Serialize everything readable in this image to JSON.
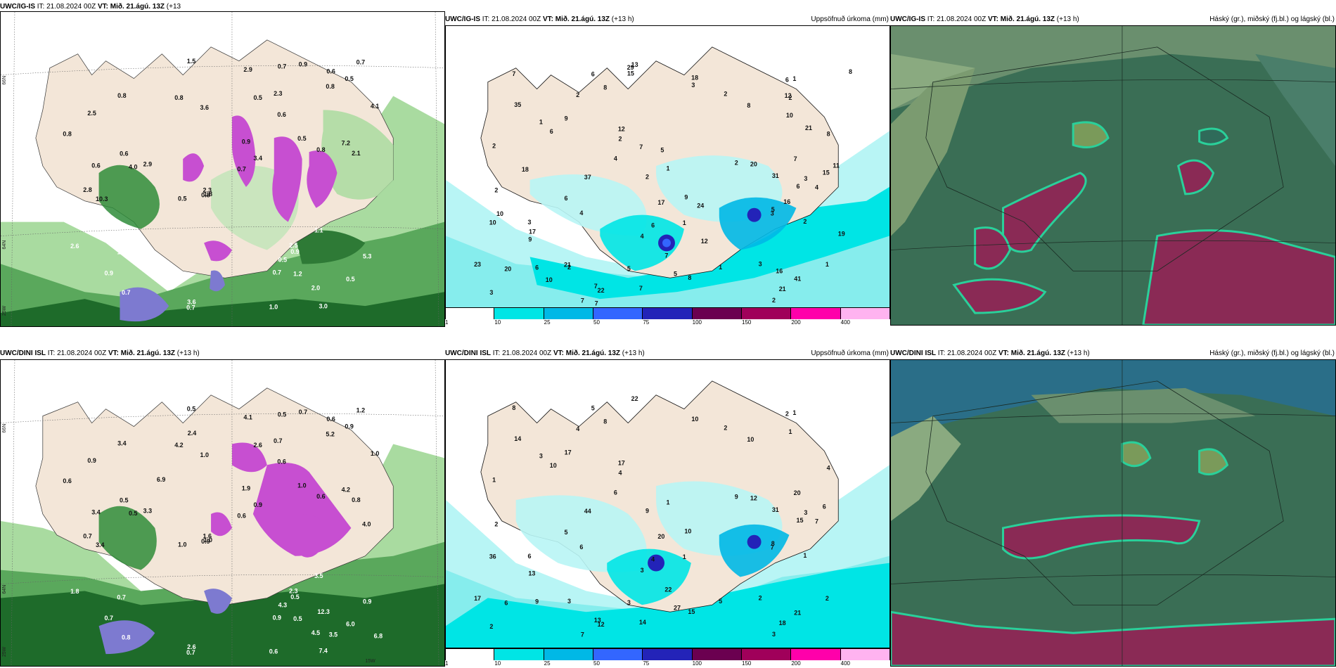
{
  "panels": {
    "top_left": {
      "model": "UWC/IG-IS",
      "it_label": "IT:",
      "it": "21.08.2024 00Z",
      "vt_label": "VT:",
      "vt": "Mið. 21.ágú. 13Z",
      "lead": "(+13",
      "title_right": ""
    },
    "top_mid": {
      "model": "UWC/IG-IS",
      "it_label": "IT:",
      "it": "21.08.2024 00Z",
      "vt_label": "VT:",
      "vt": "Mið. 21.ágú. 13Z",
      "lead": "(+13 h)",
      "title_right": "Uppsöfnuð úrkoma (mm)"
    },
    "top_right": {
      "model": "UWC/IG-IS",
      "it_label": "IT:",
      "it": "21.08.2024 00Z",
      "vt_label": "VT:",
      "vt": "Mið. 21.ágú. 13Z",
      "lead": "(+13 h)",
      "title_right": "Háský (gr.), miðský (fj.bl.) og lágský (bl.)"
    },
    "bot_left": {
      "model": "UWC/DINI ISL",
      "it_label": "IT:",
      "it": "21.08.2024 00Z",
      "vt_label": "VT:",
      "vt": "Mið. 21.ágú. 13Z",
      "lead": "(+13 h)",
      "title_right": ""
    },
    "bot_mid": {
      "model": "UWC/DINI ISL",
      "it_label": "IT:",
      "it": "21.08.2024 00Z",
      "vt_label": "VT:",
      "vt": "Mið. 21.ágú. 13Z",
      "lead": "(+13 h)",
      "title_right": "Uppsöfnuð úrkoma (mm)"
    },
    "bot_right": {
      "model": "UWC/DINI ISL",
      "it_label": "IT:",
      "it": "21.08.2024 00Z",
      "vt_label": "VT:",
      "vt": "Mið. 21.ágú. 13Z",
      "lead": "(+13 h)",
      "title_right": "Háský (gr.), miðský (fj.bl.) og lágský (bl.)"
    }
  },
  "axis_labels": {
    "lat66": "66N",
    "lat64": "64N",
    "lon25": "25W",
    "lon15": "15W",
    "h_suffix": "h)"
  },
  "precip_colorbar": {
    "ticks": [
      "1",
      "10",
      "25",
      "50",
      "75",
      "100",
      "150",
      "200",
      "400"
    ],
    "colors": [
      "#ffffff",
      "#00e5e5",
      "#00b8e6",
      "#3366ff",
      "#2323b8",
      "#6b0050",
      "#a0005a",
      "#ff00aa",
      "#ffb3f0"
    ]
  },
  "land_color": "#f3e6d8",
  "labels": {
    "top_left": [
      "0.6",
      "0.6",
      "0.7",
      "0.6",
      "0.5",
      "0.7",
      "0.5",
      "0.8",
      "0.7",
      "0.9",
      "1.2",
      "0.8",
      "0.9",
      "0.5",
      "0.7",
      "0.8",
      "0.7",
      "1.3",
      "0.9",
      "2.5",
      "1.5",
      "1.8",
      "5.3",
      "0.5",
      "1.0",
      "4.0",
      "2.8",
      "3.4",
      "2.3",
      "2.9",
      "2.3",
      "2.1",
      "3.6",
      "10.3",
      "7.2",
      "4.1",
      "3.6",
      "2.5",
      "2.6",
      "1.1",
      "2.0",
      "0.8",
      "2.9",
      "0.8",
      "0.5",
      "0.6",
      "0.5",
      "3.0",
      "0.8",
      "0.9",
      "0.7"
    ],
    "top_mid": [
      "2",
      "2",
      "1",
      "1",
      "1",
      "2",
      "3",
      "1",
      "2",
      "2",
      "2",
      "1",
      "1",
      "2",
      "2",
      "3",
      "4",
      "5",
      "6",
      "3",
      "4",
      "2",
      "3",
      "5",
      "7",
      "4",
      "6",
      "2",
      "3",
      "7",
      "4",
      "6",
      "2",
      "7",
      "9",
      "8",
      "6",
      "15",
      "3",
      "8",
      "9",
      "13",
      "7",
      "5",
      "7",
      "6",
      "9",
      "8",
      "10",
      "31",
      "37",
      "17",
      "20",
      "23",
      "21",
      "7",
      "6",
      "6",
      "8",
      "20",
      "12",
      "41",
      "35",
      "22",
      "29",
      "21",
      "5",
      "8",
      "12",
      "10",
      "21",
      "18",
      "16",
      "15",
      "18",
      "24",
      "19",
      "7",
      "11",
      "16",
      "10",
      "17",
      "7",
      "10",
      "12"
    ],
    "top_right": [],
    "bot_left": [
      "0.6",
      "0.5",
      "0.7",
      "0.6",
      "1.0",
      "0.9",
      "1.0",
      "0.6",
      "0.8",
      "0.7",
      "0.5",
      "0.9",
      "0.7",
      "0.9",
      "0.5",
      "0.6",
      "0.6",
      "0.7",
      "0.5",
      "0.9",
      "0.5",
      "1.0",
      "0.9",
      "2.6",
      "0.6",
      "0.5",
      "0.7",
      "0.9",
      "1.6",
      "3.3",
      "0.7",
      "0.8",
      "1.0",
      "3.4",
      "4.2",
      "1.0",
      "2.6",
      "2.3",
      "1.8",
      "3.5",
      "4.5",
      "3.4",
      "4.1",
      "4.2",
      "4.3",
      "3.4",
      "6.0",
      "7.4",
      "5.2",
      "1.9",
      "1.2",
      "4.0",
      "3.5",
      "6.9",
      "12.3",
      "6.8",
      "2.4"
    ],
    "bot_mid": [
      "1",
      "2",
      "5",
      "1",
      "1",
      "1",
      "2",
      "2",
      "3",
      "1",
      "2",
      "1",
      "3",
      "4",
      "4",
      "2",
      "3",
      "8",
      "2",
      "6",
      "6",
      "3",
      "3",
      "3",
      "7",
      "7",
      "10",
      "9",
      "10",
      "8",
      "6",
      "5",
      "9",
      "14",
      "17",
      "15",
      "4",
      "6",
      "7",
      "10",
      "10",
      "22",
      "22",
      "27",
      "20",
      "9",
      "13",
      "8",
      "36",
      "31",
      "44",
      "20",
      "12",
      "17",
      "18",
      "13",
      "15",
      "5",
      "4",
      "6",
      "17",
      "21",
      "14",
      "12"
    ],
    "bot_right": []
  }
}
